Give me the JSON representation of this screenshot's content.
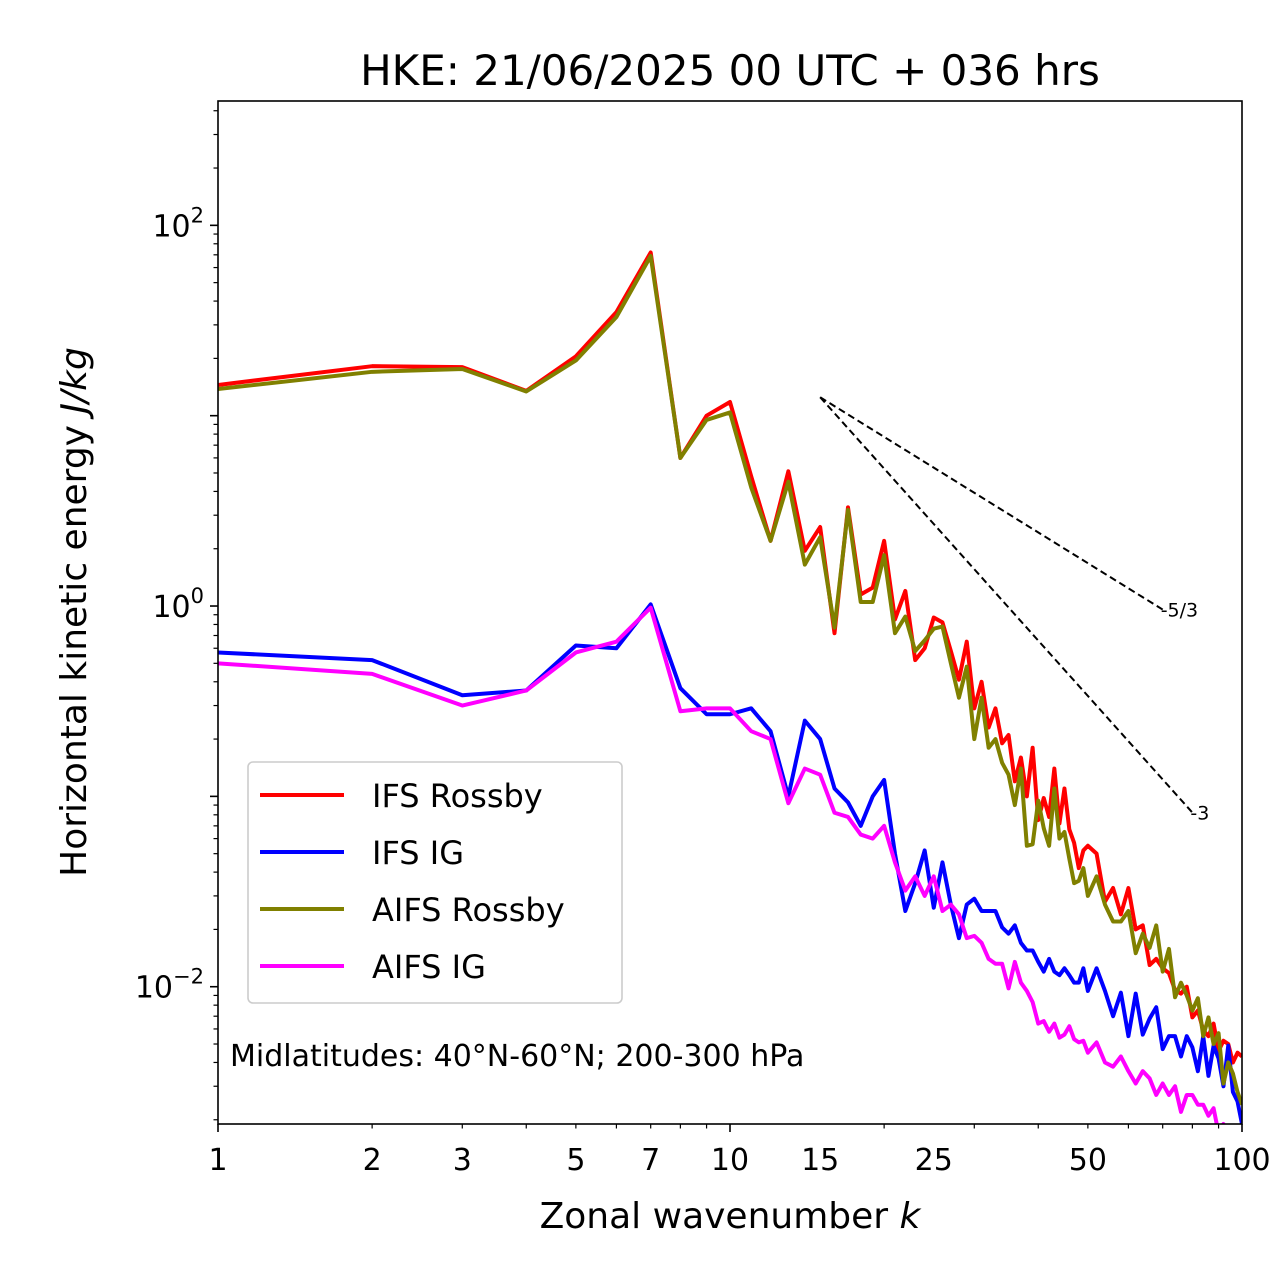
{
  "chart_data": {
    "type": "line",
    "title": "HKE: 21/06/2025 00 UTC + 036 hrs",
    "xlabel_text": "Zonal wavenumber ",
    "xlabel_italic": "k",
    "ylabel_text": "Horizontal kinetic energy ",
    "ylabel_italic": "J/kg",
    "x_scale": "log",
    "y_scale": "log",
    "xlim": [
      1,
      100
    ],
    "ylim": [
      0.0019,
      450
    ],
    "x_ticks": [
      {
        "value": 1,
        "label": "1"
      },
      {
        "value": 2,
        "label": "2"
      },
      {
        "value": 3,
        "label": "3"
      },
      {
        "value": 5,
        "label": "5"
      },
      {
        "value": 7,
        "label": "7"
      },
      {
        "value": 10,
        "label": "10"
      },
      {
        "value": 15,
        "label": "15"
      },
      {
        "value": 25,
        "label": "25"
      },
      {
        "value": 50,
        "label": "50"
      },
      {
        "value": 100,
        "label": "100"
      }
    ],
    "y_ticks": [
      {
        "value": 100,
        "base": "10",
        "exp": "2"
      },
      {
        "value": 1,
        "base": "10",
        "exp": "0"
      },
      {
        "value": 0.01,
        "base": "10",
        "exp": "−2"
      }
    ],
    "grid": false,
    "legend_position": "lower-left",
    "annotation": "Midlatitudes: 40°N-60°N; 200-300 hPa",
    "reference_lines": [
      {
        "label": "-5/3",
        "slope": -1.6667,
        "x": [
          15,
          70
        ],
        "y": [
          12.5,
          0.958
        ],
        "color": "#000000"
      },
      {
        "label": "-3",
        "slope": -3,
        "x": [
          15,
          80
        ],
        "y": [
          12.5,
          0.0822
        ],
        "color": "#000000"
      }
    ],
    "series": [
      {
        "name": "IFS Rossby",
        "color": "#ff0000",
        "x": [
          1,
          2,
          3,
          4,
          5,
          6,
          7,
          8,
          9,
          10,
          11,
          12,
          13,
          14,
          15,
          16,
          17,
          18,
          19,
          20,
          21,
          22,
          23,
          24,
          25,
          26,
          27,
          28,
          29,
          30,
          31,
          32,
          33,
          34,
          35,
          36,
          37,
          38,
          39,
          40,
          41,
          42,
          43,
          44,
          45,
          46,
          47,
          48,
          49,
          50,
          52,
          54,
          56,
          58,
          60,
          62,
          64,
          66,
          68,
          70,
          72,
          74,
          76,
          78,
          80,
          82,
          84,
          86,
          88,
          90,
          92,
          94,
          96,
          98,
          100
        ],
        "y": [
          14.5,
          18.2,
          18.0,
          13.5,
          20.5,
          35,
          72,
          6.0,
          10.0,
          11.8,
          4.8,
          2.2,
          5.1,
          1.95,
          2.6,
          0.72,
          3.3,
          1.15,
          1.25,
          2.2,
          0.85,
          1.2,
          0.52,
          0.6,
          0.87,
          0.82,
          0.58,
          0.41,
          0.65,
          0.29,
          0.4,
          0.23,
          0.29,
          0.19,
          0.21,
          0.12,
          0.16,
          0.1,
          0.18,
          0.075,
          0.098,
          0.078,
          0.14,
          0.072,
          0.11,
          0.067,
          0.057,
          0.042,
          0.052,
          0.055,
          0.05,
          0.028,
          0.033,
          0.024,
          0.033,
          0.02,
          0.021,
          0.013,
          0.014,
          0.0125,
          0.0118,
          0.0096,
          0.0092,
          0.01,
          0.0069,
          0.0075,
          0.0059,
          0.0055,
          0.0064,
          0.0046,
          0.0052,
          0.005,
          0.004,
          0.0045,
          0.0043
        ]
      },
      {
        "name": "IFS IG",
        "color": "#0000ff",
        "x": [
          1,
          2,
          3,
          4,
          5,
          6,
          7,
          8,
          9,
          10,
          11,
          12,
          13,
          14,
          15,
          16,
          17,
          18,
          19,
          20,
          21,
          22,
          23,
          24,
          25,
          26,
          27,
          28,
          29,
          30,
          31,
          32,
          33,
          34,
          35,
          36,
          37,
          38,
          39,
          40,
          41,
          42,
          43,
          44,
          45,
          46,
          47,
          48,
          49,
          50,
          52,
          54,
          56,
          58,
          60,
          62,
          64,
          66,
          68,
          70,
          72,
          74,
          76,
          78,
          80,
          82,
          84,
          86,
          88,
          90,
          92,
          94,
          96,
          98,
          100
        ],
        "y": [
          0.57,
          0.52,
          0.34,
          0.36,
          0.62,
          0.6,
          1.02,
          0.37,
          0.27,
          0.27,
          0.29,
          0.22,
          0.1,
          0.25,
          0.2,
          0.11,
          0.093,
          0.07,
          0.1,
          0.122,
          0.05,
          0.025,
          0.035,
          0.052,
          0.026,
          0.045,
          0.027,
          0.018,
          0.027,
          0.029,
          0.025,
          0.025,
          0.025,
          0.0205,
          0.019,
          0.021,
          0.017,
          0.0155,
          0.0155,
          0.0135,
          0.012,
          0.014,
          0.012,
          0.0115,
          0.0125,
          0.0115,
          0.0105,
          0.0105,
          0.0125,
          0.0095,
          0.0125,
          0.0095,
          0.007,
          0.0093,
          0.0055,
          0.0092,
          0.0056,
          0.0068,
          0.0078,
          0.0047,
          0.0055,
          0.0055,
          0.0043,
          0.0055,
          0.0048,
          0.0036,
          0.0055,
          0.0034,
          0.0049,
          0.0042,
          0.003,
          0.0049,
          0.0028,
          0.0025,
          0.0019
        ]
      },
      {
        "name": "AIFS Rossby",
        "color": "#808000",
        "x": [
          1,
          2,
          3,
          4,
          5,
          6,
          7,
          8,
          9,
          10,
          11,
          12,
          13,
          14,
          15,
          16,
          17,
          18,
          19,
          20,
          21,
          22,
          23,
          24,
          25,
          26,
          27,
          28,
          29,
          30,
          31,
          32,
          33,
          34,
          35,
          36,
          37,
          38,
          39,
          40,
          41,
          42,
          43,
          44,
          45,
          46,
          47,
          48,
          49,
          50,
          52,
          54,
          56,
          58,
          60,
          62,
          64,
          66,
          68,
          70,
          72,
          74,
          76,
          78,
          80,
          82,
          84,
          86,
          88,
          90,
          92,
          94,
          96,
          98,
          100
        ],
        "y": [
          13.8,
          17.0,
          17.6,
          13.4,
          19.5,
          33,
          69,
          6.0,
          9.5,
          10.4,
          4.2,
          2.2,
          4.5,
          1.65,
          2.3,
          0.77,
          3.2,
          1.05,
          1.05,
          1.85,
          0.72,
          0.88,
          0.58,
          0.66,
          0.76,
          0.78,
          0.5,
          0.33,
          0.48,
          0.2,
          0.33,
          0.18,
          0.2,
          0.15,
          0.13,
          0.09,
          0.14,
          0.055,
          0.056,
          0.095,
          0.068,
          0.055,
          0.11,
          0.06,
          0.065,
          0.047,
          0.035,
          0.036,
          0.042,
          0.03,
          0.038,
          0.027,
          0.022,
          0.022,
          0.025,
          0.015,
          0.019,
          0.016,
          0.021,
          0.012,
          0.0158,
          0.0088,
          0.0105,
          0.009,
          0.0075,
          0.0087,
          0.0055,
          0.0069,
          0.005,
          0.0057,
          0.0031,
          0.004,
          0.0035,
          0.0028,
          0.0024
        ]
      },
      {
        "name": "AIFS IG",
        "color": "#ff00ff",
        "x": [
          1,
          2,
          3,
          4,
          5,
          6,
          7,
          8,
          9,
          10,
          11,
          12,
          13,
          14,
          15,
          16,
          17,
          18,
          19,
          20,
          21,
          22,
          23,
          24,
          25,
          26,
          27,
          28,
          29,
          30,
          31,
          32,
          33,
          34,
          35,
          36,
          37,
          38,
          39,
          40,
          41,
          42,
          43,
          44,
          45,
          46,
          47,
          48,
          49,
          50,
          52,
          54,
          56,
          58,
          60,
          62,
          64,
          66,
          68,
          70,
          72,
          74,
          76,
          78,
          80,
          82,
          84,
          86,
          88,
          90,
          92,
          94,
          96,
          98
        ],
        "y": [
          0.5,
          0.44,
          0.3,
          0.36,
          0.57,
          0.65,
          0.98,
          0.28,
          0.29,
          0.29,
          0.22,
          0.2,
          0.092,
          0.14,
          0.13,
          0.082,
          0.078,
          0.063,
          0.06,
          0.07,
          0.045,
          0.032,
          0.038,
          0.03,
          0.038,
          0.025,
          0.027,
          0.024,
          0.018,
          0.0185,
          0.017,
          0.014,
          0.0132,
          0.0132,
          0.0098,
          0.0135,
          0.0105,
          0.0095,
          0.0083,
          0.0064,
          0.0066,
          0.0058,
          0.0064,
          0.0054,
          0.0056,
          0.0062,
          0.0053,
          0.0051,
          0.0052,
          0.0045,
          0.0051,
          0.004,
          0.0038,
          0.0043,
          0.0036,
          0.0031,
          0.0036,
          0.0033,
          0.0027,
          0.0031,
          0.0027,
          0.003,
          0.0022,
          0.0027,
          0.0027,
          0.0024,
          0.0024,
          0.0021,
          0.0023,
          0.0017,
          0.0019,
          0.0015,
          0.0018,
          0.0012
        ]
      }
    ]
  }
}
